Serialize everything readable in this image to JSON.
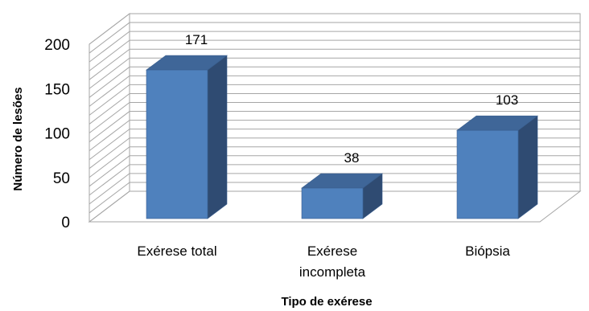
{
  "chart_data": {
    "type": "bar",
    "style": "3d-column",
    "categories": [
      [
        "Exérese total"
      ],
      [
        "Exérese",
        "incompleta"
      ],
      [
        "Biópsia"
      ]
    ],
    "values": [
      171,
      38,
      103
    ],
    "data_labels": [
      "171",
      "38",
      "103"
    ],
    "xlabel": "Tipo de exérese",
    "ylabel": "Número de lesões",
    "ylim": [
      0,
      200
    ],
    "yticks": [
      0,
      50,
      100,
      150,
      200
    ],
    "ytick_labels": [
      "0",
      "50",
      "100",
      "150",
      "200"
    ],
    "grid": true,
    "legend": "none",
    "colors": {
      "bar_front": "#4F81BD",
      "bar_side": "#2F4B72",
      "bar_top": "#3F6698",
      "bar_stroke": "#3A5F8F",
      "gridline": "#A6A6A6",
      "wall_fill": "#FFFFFF"
    }
  }
}
